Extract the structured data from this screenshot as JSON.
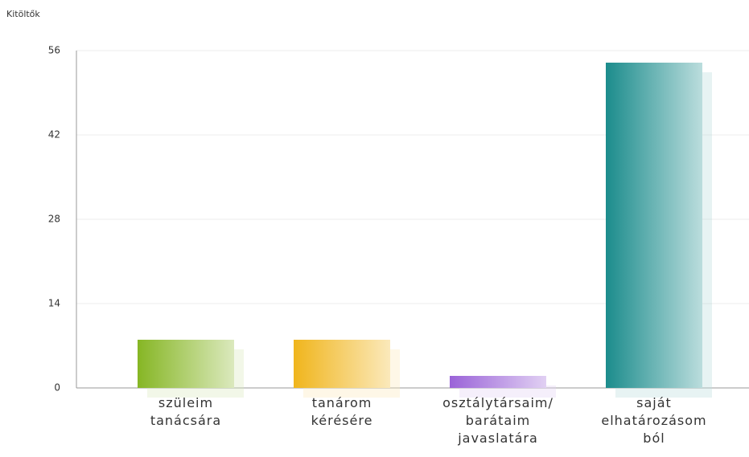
{
  "chart_data": {
    "type": "bar",
    "y_axis_label": "Kitöltők",
    "categories": [
      "szüleim\ntanácsára",
      "tanárom\nkérésére",
      "osztálytársaim/\nbarátaim\njavaslatára",
      "saját\nelhatározásom\nból"
    ],
    "values": [
      8,
      8,
      2,
      54
    ],
    "colors": [
      "#86b624",
      "#f0b51c",
      "#9a63d8",
      "#1b8c8c"
    ],
    "ylim": [
      0,
      56
    ],
    "yticks": [
      0,
      14,
      28,
      42,
      56
    ],
    "grid": true
  }
}
